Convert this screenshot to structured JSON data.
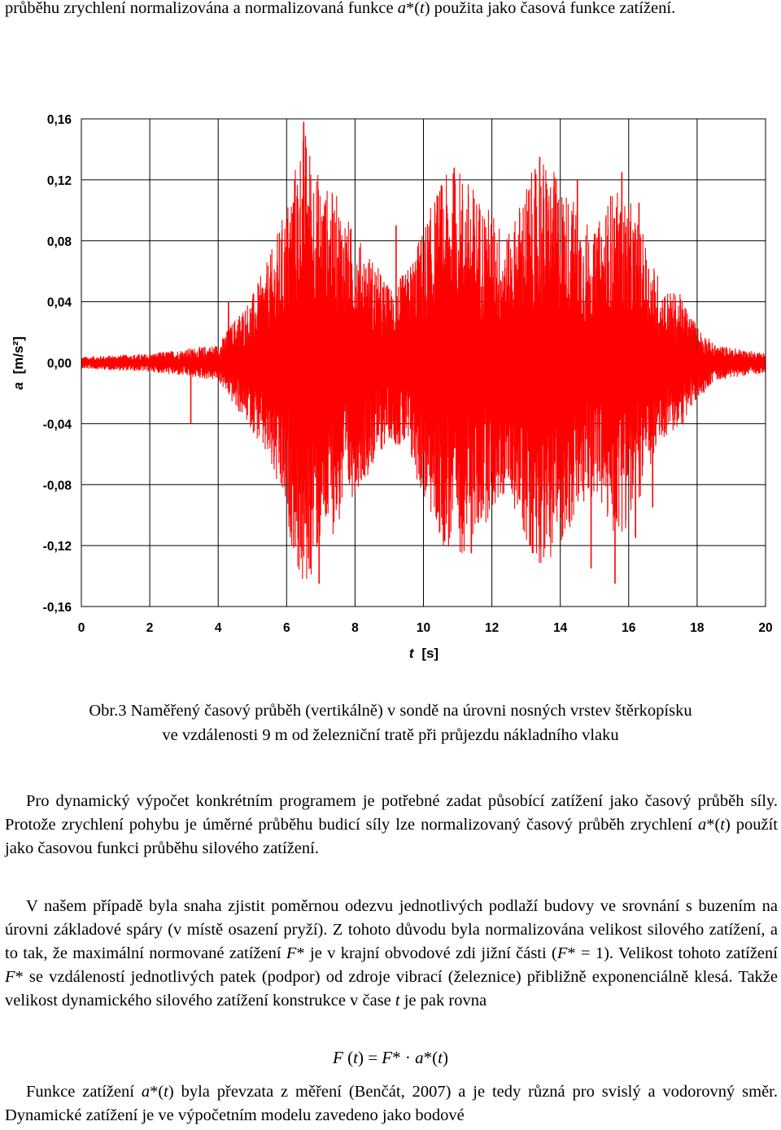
{
  "intro": {
    "line_part1": "průběhu zrychlení normalizována a normalizovaná funkce ",
    "func_a": "a",
    "func_star": "*(",
    "func_t": "t",
    "line_part2": ") použita jako časová funkce zatížení."
  },
  "chart_data": {
    "type": "line",
    "title": "",
    "xlabel_var": "t",
    "xlabel_unit": "[s]",
    "ylabel_var": "a",
    "ylabel_unit": "[m/s²]",
    "xlim": [
      0,
      20
    ],
    "ylim": [
      -0.16,
      0.16
    ],
    "x_ticks": [
      "0",
      "2",
      "4",
      "6",
      "8",
      "10",
      "12",
      "14",
      "16",
      "18",
      "20"
    ],
    "y_ticks": [
      "0,16",
      "0,12",
      "0,08",
      "0,04",
      "0,00",
      "-0,04",
      "-0,08",
      "-0,12",
      "-0,16"
    ],
    "grid": true,
    "series": [
      {
        "color": "#ff0000",
        "envelope": {
          "x": [
            0,
            1,
            2,
            3,
            4,
            4.5,
            5,
            5.5,
            6,
            6.5,
            7,
            7.5,
            8,
            8.5,
            9,
            9.5,
            10,
            10.5,
            11,
            11.5,
            12,
            12.5,
            13,
            13.5,
            14,
            14.5,
            15,
            15.5,
            16,
            16.5,
            17,
            17.5,
            18,
            18.5,
            19,
            19.5,
            20
          ],
          "y": [
            0.004,
            0.005,
            0.006,
            0.009,
            0.012,
            0.03,
            0.045,
            0.07,
            0.105,
            0.158,
            0.12,
            0.11,
            0.085,
            0.07,
            0.05,
            0.06,
            0.09,
            0.12,
            0.13,
            0.115,
            0.1,
            0.085,
            0.12,
            0.135,
            0.12,
            0.105,
            0.085,
            0.115,
            0.108,
            0.08,
            0.05,
            0.045,
            0.025,
            0.012,
            0.01,
            0.008,
            0.007
          ]
        },
        "peaks": [
          {
            "x": 6.5,
            "y": 0.158
          },
          {
            "x": 6.2,
            "y": 0.105
          },
          {
            "x": 6.95,
            "y": -0.145
          },
          {
            "x": 6.7,
            "y": -0.135
          },
          {
            "x": 9.2,
            "y": 0.09
          },
          {
            "x": 10.9,
            "y": 0.128
          },
          {
            "x": 11.6,
            "y": -0.105
          },
          {
            "x": 11.4,
            "y": -0.125
          },
          {
            "x": 13.4,
            "y": 0.135
          },
          {
            "x": 13.2,
            "y": -0.125
          },
          {
            "x": 14.5,
            "y": 0.12
          },
          {
            "x": 14.9,
            "y": -0.135
          },
          {
            "x": 15.8,
            "y": 0.125
          },
          {
            "x": 16.3,
            "y": 0.105
          },
          {
            "x": 15.6,
            "y": -0.145
          },
          {
            "x": 16.2,
            "y": -0.115
          },
          {
            "x": 16.7,
            "y": -0.095
          },
          {
            "x": 3.2,
            "y": -0.04
          },
          {
            "x": 4.3,
            "y": 0.04
          }
        ]
      }
    ]
  },
  "caption": {
    "line1": "Obr.3 Naměřený časový průběh (vertikálně) v sondě na úrovni nosných vrstev štěrkopísku",
    "line2": "ve vzdálenosti 9 m od železniční tratě při průjezdu nákladního vlaku"
  },
  "p1": {
    "a": "Pro dynamický výpočet konkrétním programem je potřebné zadat působící zatížení jako časový průběh síly. Protože zrychlení pohybu je úměrné průběhu budicí síly lze normalizovaný časový průběh zrychlení ",
    "var_a": "a",
    "star": "*(",
    "var_t": "t",
    "b": ") použít jako časovou funkci průběhu silového zatížení."
  },
  "p2": {
    "a": "V našem případě byla snaha zjistit poměrnou odezvu jednotlivých podlaží budovy ve srovnání s buzením na úrovni základové spáry (v místě osazení pryží). Z tohoto důvodu byla normalizována velikost silového zatížení, a to tak, že maximální normované zatížení ",
    "var_F1": "F",
    "b": "* je v krajní obvodové zdi jižní části (",
    "var_F2": "F",
    "c": "* = 1). Velikost tohoto zatížení ",
    "var_F3": "F",
    "d": "* se vzdáleností jednotlivých patek (podpor) od zdroje vibrací (železnice) přibližně exponenciálně klesá. Takže velikost dynamického silového zatížení konstrukce v čase ",
    "var_t": "t",
    "e": " je pak rovna"
  },
  "formula": {
    "F": "F",
    "open": " (",
    "t1": "t",
    "mid": ") = ",
    "F2": "F",
    "star": "* · ",
    "a": "a",
    "star2": "*(",
    "t2": "t",
    "close": ")"
  },
  "p3": {
    "a": "Funkce zatížení ",
    "var_a": "a",
    "star": "*(",
    "var_t": "t",
    "b": ") byla převzata z měření (Benčát, 2007) a je tedy různá pro svislý a vodorovný směr. Dynamické zatížení je ve výpočetním modelu zavedeno jako bodové"
  }
}
